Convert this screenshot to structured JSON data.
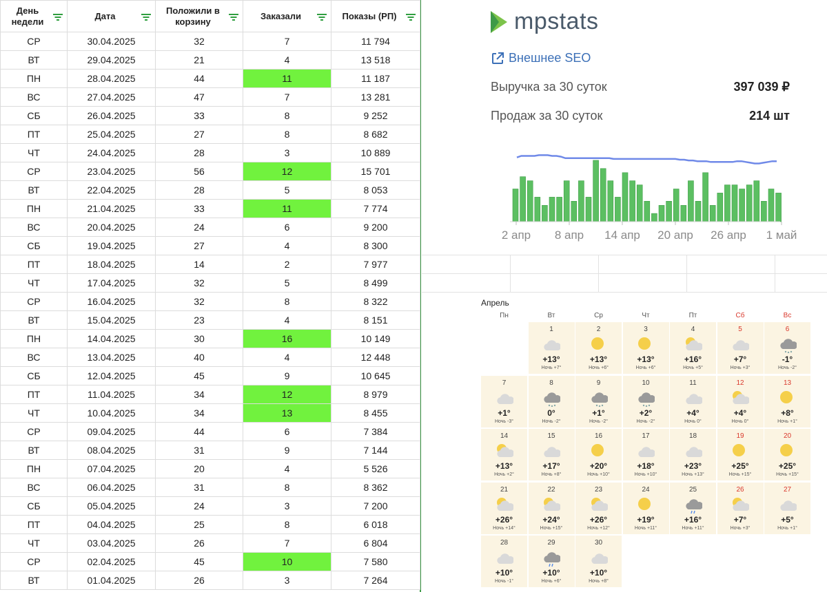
{
  "table": {
    "headers": [
      "День недели",
      "Дата",
      "Положили в корзину",
      "Заказали",
      "Показы (РП)"
    ],
    "rows": [
      {
        "day": "СР",
        "date": "30.04.2025",
        "cart": "32",
        "orders": "7",
        "views": "11 794",
        "hl": false
      },
      {
        "day": "ВТ",
        "date": "29.04.2025",
        "cart": "21",
        "orders": "4",
        "views": "13 518",
        "hl": false
      },
      {
        "day": "ПН",
        "date": "28.04.2025",
        "cart": "44",
        "orders": "11",
        "views": "11 187",
        "hl": true
      },
      {
        "day": "ВС",
        "date": "27.04.2025",
        "cart": "47",
        "orders": "7",
        "views": "13 281",
        "hl": false
      },
      {
        "day": "СБ",
        "date": "26.04.2025",
        "cart": "33",
        "orders": "8",
        "views": "9 252",
        "hl": false
      },
      {
        "day": "ПТ",
        "date": "25.04.2025",
        "cart": "27",
        "orders": "8",
        "views": "8 682",
        "hl": false
      },
      {
        "day": "ЧТ",
        "date": "24.04.2025",
        "cart": "28",
        "orders": "3",
        "views": "10 889",
        "hl": false
      },
      {
        "day": "СР",
        "date": "23.04.2025",
        "cart": "56",
        "orders": "12",
        "views": "15 701",
        "hl": true
      },
      {
        "day": "ВТ",
        "date": "22.04.2025",
        "cart": "28",
        "orders": "5",
        "views": "8 053",
        "hl": false
      },
      {
        "day": "ПН",
        "date": "21.04.2025",
        "cart": "33",
        "orders": "11",
        "views": "7 774",
        "hl": true
      },
      {
        "day": "ВС",
        "date": "20.04.2025",
        "cart": "24",
        "orders": "6",
        "views": "9 200",
        "hl": false
      },
      {
        "day": "СБ",
        "date": "19.04.2025",
        "cart": "27",
        "orders": "4",
        "views": "8 300",
        "hl": false
      },
      {
        "day": "ПТ",
        "date": "18.04.2025",
        "cart": "14",
        "orders": "2",
        "views": "7 977",
        "hl": false
      },
      {
        "day": "ЧТ",
        "date": "17.04.2025",
        "cart": "32",
        "orders": "5",
        "views": "8 499",
        "hl": false
      },
      {
        "day": "СР",
        "date": "16.04.2025",
        "cart": "32",
        "orders": "8",
        "views": "8 322",
        "hl": false
      },
      {
        "day": "ВТ",
        "date": "15.04.2025",
        "cart": "23",
        "orders": "4",
        "views": "8 151",
        "hl": false
      },
      {
        "day": "ПН",
        "date": "14.04.2025",
        "cart": "30",
        "orders": "16",
        "views": "10 149",
        "hl": true
      },
      {
        "day": "ВС",
        "date": "13.04.2025",
        "cart": "40",
        "orders": "4",
        "views": "12 448",
        "hl": false
      },
      {
        "day": "СБ",
        "date": "12.04.2025",
        "cart": "45",
        "orders": "9",
        "views": "10 645",
        "hl": false
      },
      {
        "day": "ПТ",
        "date": "11.04.2025",
        "cart": "34",
        "orders": "12",
        "views": "8 979",
        "hl": true
      },
      {
        "day": "ЧТ",
        "date": "10.04.2025",
        "cart": "34",
        "orders": "13",
        "views": "8 455",
        "hl": true
      },
      {
        "day": "СР",
        "date": "09.04.2025",
        "cart": "44",
        "orders": "6",
        "views": "7 384",
        "hl": false
      },
      {
        "day": "ВТ",
        "date": "08.04.2025",
        "cart": "31",
        "orders": "9",
        "views": "7 144",
        "hl": false
      },
      {
        "day": "ПН",
        "date": "07.04.2025",
        "cart": "20",
        "orders": "4",
        "views": "5 526",
        "hl": false
      },
      {
        "day": "ВС",
        "date": "06.04.2025",
        "cart": "31",
        "orders": "8",
        "views": "8 362",
        "hl": false
      },
      {
        "day": "СБ",
        "date": "05.04.2025",
        "cart": "24",
        "orders": "3",
        "views": "7 200",
        "hl": false
      },
      {
        "day": "ПТ",
        "date": "04.04.2025",
        "cart": "25",
        "orders": "8",
        "views": "6 018",
        "hl": false
      },
      {
        "day": "ЧТ",
        "date": "03.04.2025",
        "cart": "26",
        "orders": "7",
        "views": "6 804",
        "hl": false
      },
      {
        "day": "СР",
        "date": "02.04.2025",
        "cart": "45",
        "orders": "10",
        "views": "7 580",
        "hl": true
      },
      {
        "day": "ВТ",
        "date": "01.04.2025",
        "cart": "26",
        "orders": "3",
        "views": "7 264",
        "hl": false
      }
    ],
    "highlight_color": "#71f23e"
  },
  "mpstats": {
    "logo_text": "mpstats",
    "seo_link": "Внешнее SEO",
    "revenue_label": "Выручка за 30 суток",
    "revenue_value": "397 039 ₽",
    "sales_label": "Продаж за 30 суток",
    "sales_value": "214 шт"
  },
  "chart_data": {
    "type": "bar",
    "title": "",
    "x_tick_labels": [
      "2 апр",
      "8 апр",
      "14 апр",
      "20 апр",
      "26 апр",
      "1 май"
    ],
    "bar_values": [
      8,
      11,
      10,
      6,
      4,
      6,
      6,
      10,
      5,
      10,
      6,
      15,
      13,
      10,
      6,
      12,
      10,
      9,
      5,
      2,
      4,
      5,
      8,
      4,
      10,
      5,
      12,
      4,
      7,
      9,
      9,
      8,
      9,
      10,
      5,
      8,
      7
    ],
    "line_values": [
      93,
      95,
      95,
      95,
      95,
      96,
      96,
      96,
      95,
      95,
      94,
      92,
      92,
      92,
      92,
      92,
      92,
      92,
      92,
      92,
      92,
      92,
      91,
      91,
      91,
      91,
      91,
      91,
      91,
      91,
      91,
      91,
      91,
      91,
      91,
      91,
      91,
      90,
      90,
      89,
      89,
      88,
      88,
      88,
      87,
      87,
      87,
      87,
      87,
      87,
      88,
      88,
      87,
      86,
      85,
      85,
      86,
      87,
      88,
      88
    ],
    "line_range": [
      0,
      100
    ],
    "ylim": [
      0,
      16
    ],
    "bar_color": "#5cbf62",
    "line_color": "#6f89e8"
  },
  "calendar": {
    "title": "Апрель",
    "weekdays": [
      "Пн",
      "Вт",
      "Ср",
      "Чт",
      "Пт",
      "Сб",
      "Вс"
    ],
    "days": [
      {
        "d": "1",
        "t": "+13°",
        "n": "Ночь +7°",
        "icon": "cloudy-icon",
        "we": false
      },
      {
        "d": "2",
        "t": "+13°",
        "n": "Ночь +6°",
        "icon": "sun-icon",
        "we": false
      },
      {
        "d": "3",
        "t": "+13°",
        "n": "Ночь +6°",
        "icon": "sun-icon",
        "we": false
      },
      {
        "d": "4",
        "t": "+16°",
        "n": "Ночь +5°",
        "icon": "partly-cloudy-icon",
        "we": false
      },
      {
        "d": "5",
        "t": "+7°",
        "n": "Ночь +3°",
        "icon": "cloudy-icon",
        "we": true
      },
      {
        "d": "6",
        "t": "-1°",
        "n": "Ночь -2°",
        "icon": "snow-icon",
        "we": true
      },
      {
        "d": "7",
        "t": "+1°",
        "n": "Ночь -3°",
        "icon": "cloudy-icon",
        "we": false
      },
      {
        "d": "8",
        "t": "0°",
        "n": "Ночь -2°",
        "icon": "snow-icon",
        "we": false
      },
      {
        "d": "9",
        "t": "+1°",
        "n": "Ночь -2°",
        "icon": "snow-icon",
        "we": false
      },
      {
        "d": "10",
        "t": "+2°",
        "n": "Ночь -2°",
        "icon": "snow-icon",
        "we": false
      },
      {
        "d": "11",
        "t": "+4°",
        "n": "Ночь 0°",
        "icon": "cloudy-icon",
        "we": false
      },
      {
        "d": "12",
        "t": "+4°",
        "n": "Ночь 0°",
        "icon": "partly-cloudy-icon",
        "we": true
      },
      {
        "d": "13",
        "t": "+8°",
        "n": "Ночь +1°",
        "icon": "sun-icon",
        "we": true
      },
      {
        "d": "14",
        "t": "+13°",
        "n": "Ночь +2°",
        "icon": "partly-cloudy-icon",
        "we": false
      },
      {
        "d": "15",
        "t": "+17°",
        "n": "Ночь +8°",
        "icon": "cloudy-icon",
        "we": false
      },
      {
        "d": "16",
        "t": "+20°",
        "n": "Ночь +10°",
        "icon": "sun-icon",
        "we": false
      },
      {
        "d": "17",
        "t": "+18°",
        "n": "Ночь +10°",
        "icon": "cloudy-icon",
        "we": false
      },
      {
        "d": "18",
        "t": "+23°",
        "n": "Ночь +13°",
        "icon": "cloudy-icon",
        "we": false
      },
      {
        "d": "19",
        "t": "+25°",
        "n": "Ночь +15°",
        "icon": "sun-icon",
        "we": true
      },
      {
        "d": "20",
        "t": "+25°",
        "n": "Ночь +15°",
        "icon": "sun-icon",
        "we": true
      },
      {
        "d": "21",
        "t": "+26°",
        "n": "Ночь +14°",
        "icon": "partly-cloudy-icon",
        "we": false
      },
      {
        "d": "22",
        "t": "+24°",
        "n": "Ночь +15°",
        "icon": "partly-cloudy-icon",
        "we": false
      },
      {
        "d": "23",
        "t": "+26°",
        "n": "Ночь +12°",
        "icon": "partly-cloudy-icon",
        "we": false
      },
      {
        "d": "24",
        "t": "+19°",
        "n": "Ночь +11°",
        "icon": "sun-icon",
        "we": false
      },
      {
        "d": "25",
        "t": "+16°",
        "n": "Ночь +11°",
        "icon": "rain-icon",
        "we": false
      },
      {
        "d": "26",
        "t": "+7°",
        "n": "Ночь +3°",
        "icon": "partly-cloudy-icon",
        "we": true
      },
      {
        "d": "27",
        "t": "+5°",
        "n": "Ночь +1°",
        "icon": "cloudy-icon",
        "we": true
      },
      {
        "d": "28",
        "t": "+10°",
        "n": "Ночь -1°",
        "icon": "cloudy-icon",
        "we": false
      },
      {
        "d": "29",
        "t": "+10°",
        "n": "Ночь +6°",
        "icon": "rain-icon",
        "we": false
      },
      {
        "d": "30",
        "t": "+10°",
        "n": "Ночь +8°",
        "icon": "cloudy-icon",
        "we": false
      }
    ]
  }
}
